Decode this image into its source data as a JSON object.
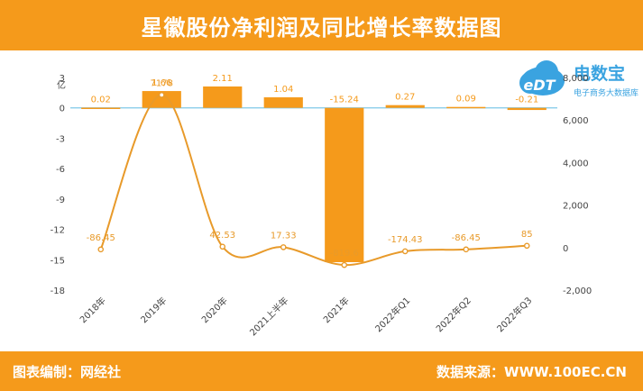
{
  "header": {
    "title": "星徽股份净利润及同比增长率数据图"
  },
  "footer": {
    "editor": "图表编制：网经社",
    "source": "数据来源：WWW.100EC.CN"
  },
  "logo": {
    "badge_text": "eDT",
    "name": "电数宝",
    "tagline": "电子商务大数据库"
  },
  "colors": {
    "bar": "#f59a1b",
    "line": "#e89a2a",
    "header": "#f59a1b",
    "zero_line": "#7fc8e8",
    "logo": "#3aa3e0"
  },
  "chart_data": {
    "type": "bar",
    "categories": [
      "2018年",
      "2019年",
      "2020年",
      "2021上半年",
      "2021年",
      "2022年Q1",
      "2022年Q2",
      "2022年Q3"
    ],
    "y_unit": "亿",
    "ylim": [
      -18,
      3
    ],
    "yticks": [
      3,
      0,
      -3,
      -6,
      -9,
      -12,
      -15,
      -18
    ],
    "y2lim": [
      -2000,
      8000
    ],
    "y2ticks": [
      8000,
      6000,
      4000,
      2000,
      0,
      -2000
    ],
    "series": [
      {
        "type": "bar",
        "axis": "left",
        "values": [
          0.02,
          1.66,
          2.11,
          1.04,
          -15.24,
          0.27,
          0.09,
          -0.21
        ],
        "labels": [
          "0.02",
          "1.66",
          "2.11",
          "1.04",
          "-15.24",
          "0.27",
          "0.09",
          "-0.21"
        ]
      },
      {
        "type": "line",
        "axis": "right",
        "smooth": true,
        "values": [
          -86.45,
          7178,
          42.53,
          17.33,
          -819.6,
          -174.43,
          -86.45,
          85
        ],
        "labels": [
          "-86.45",
          "7178",
          "42.53",
          "17.33",
          "-819.6",
          "-174.43",
          "-86.45",
          "85"
        ]
      }
    ],
    "grid": false,
    "legend": "none"
  }
}
